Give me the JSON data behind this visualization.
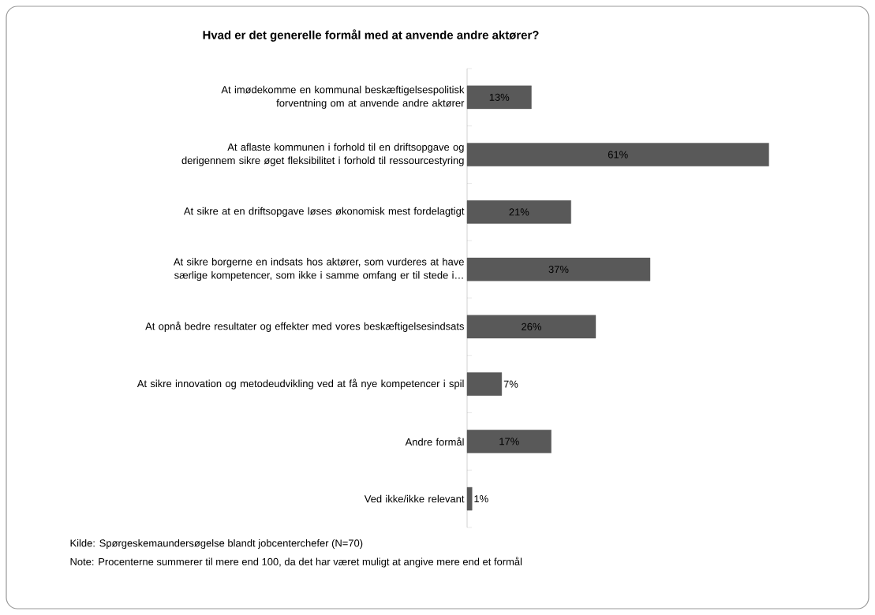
{
  "chart_data": {
    "type": "bar",
    "orientation": "horizontal",
    "title": "Hvad er det generelle formål med at anvende andre aktører?",
    "categories": [
      "At imødekomme en kommunal beskæftigelsespolitisk forventning om at anvende andre aktører",
      "At aflaste kommunen i forhold til en driftsopgave og derigennem sikre øget fleksibilitet i forhold til ressourcestyring",
      "At sikre at en driftsopgave løses økonomisk mest fordelagtigt",
      "At sikre borgerne en indsats hos aktører, som vurderes at have særlige kompetencer, som ikke i samme omfang er til stede i…",
      "At opnå bedre resultater og effekter med vores beskæftigelsesindsats",
      "At sikre innovation og metodeudvikling ved at få nye kompetencer i spil",
      "Andre formål",
      "Ved ikke/ikke relevant"
    ],
    "values": [
      13,
      61,
      21,
      37,
      26,
      7,
      17,
      1
    ],
    "value_labels": [
      "13%",
      "61%",
      "21%",
      "37%",
      "26%",
      "7%",
      "17%",
      "1%"
    ],
    "color": "#595959",
    "annotations": [
      "Kilde: Spørgeskemaundersøgelse blandt jobcenterchefer (N=70)",
      "Note: Procenterne summerer til mere end 100, da det har været muligt at angive mere end et formål"
    ]
  }
}
